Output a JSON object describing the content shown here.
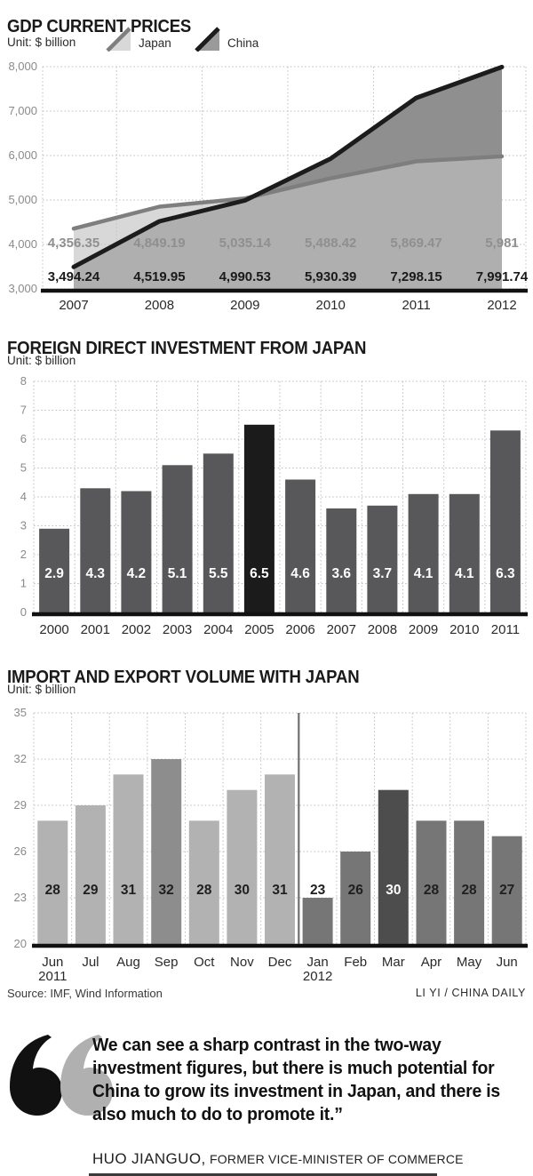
{
  "page": {
    "background": "#ffffff"
  },
  "palette": {
    "grid": "#bdbdbd",
    "axis_tick": "#8a8a8a",
    "baseline": "#111111",
    "x_label": "#2a2a2a",
    "divider": "#6f6f6f"
  },
  "source_line": {
    "source": "Source: IMF, Wind Information",
    "credit": "LI YI / CHINA DAILY"
  },
  "quote": {
    "text": "We can see a sharp contrast in the two-way investment figures, but there is much potential for China to grow its investment in Japan, and there is also much to do to promote it.”",
    "name": "HUO JIANGUO,",
    "role": "FORMER VICE-MINISTER OF COMMERCE",
    "mark_black": "#111111",
    "mark_gray": "#b0b0b0"
  },
  "chart_data": [
    {
      "id": "gdp",
      "type": "area",
      "title": "GDP CURRENT PRICES",
      "unit_label": "Unit: $ billion",
      "legend_position": "top",
      "grid": true,
      "categories": [
        "2007",
        "2008",
        "2009",
        "2010",
        "2011",
        "2012"
      ],
      "series": [
        {
          "name": "Japan",
          "values": [
            4356.35,
            4849.19,
            5035.14,
            5488.42,
            5869.47,
            5981
          ],
          "value_labels": [
            "4,356.35",
            "4,849.19",
            "5,035.14",
            "5,488.42",
            "5,869.47",
            "5,981"
          ],
          "area_fill": "#c2c2c2",
          "area_opacity": 0.64,
          "line_color": "#7e7e7e",
          "label_color": "#8f8f8f"
        },
        {
          "name": "China",
          "values": [
            3494.24,
            4519.95,
            4990.53,
            5930.39,
            7298.15,
            7991.74
          ],
          "value_labels": [
            "3,494.24",
            "4,519.95",
            "4,990.53",
            "5,930.39",
            "7,298.15",
            "7,991.74"
          ],
          "area_fill": "#8f8f8f",
          "area_opacity": 1,
          "line_color": "#1c1c1c",
          "label_color": "#1a1a1a"
        }
      ],
      "ylim": [
        3000,
        8000
      ],
      "yticks": [
        {
          "v": 8000,
          "label": "8,000"
        },
        {
          "v": 7000,
          "label": "7,000"
        },
        {
          "v": 6000,
          "label": "6,000"
        },
        {
          "v": 5000,
          "label": "5,000"
        },
        {
          "v": 4000,
          "label": "4,000"
        },
        {
          "v": 3000,
          "label": "3,000"
        }
      ]
    },
    {
      "id": "fdi",
      "type": "bar",
      "title": "FOREIGN DIRECT INVESTMENT FROM JAPAN",
      "unit_label": "Unit: $ billion",
      "grid": true,
      "categories": [
        "2000",
        "2001",
        "2002",
        "2003",
        "2004",
        "2005",
        "2006",
        "2007",
        "2008",
        "2009",
        "2010",
        "2011"
      ],
      "values": [
        2.9,
        4.3,
        4.2,
        5.1,
        5.5,
        6.5,
        4.6,
        3.6,
        3.7,
        4.1,
        4.1,
        6.3
      ],
      "value_labels": [
        "2.9",
        "4.3",
        "4.2",
        "5.1",
        "5.5",
        "6.5",
        "4.6",
        "3.6",
        "3.7",
        "4.1",
        "4.1",
        "6.3"
      ],
      "bar_color": "#58585a",
      "highlight_index": 5,
      "highlight_color": "#1b1b1b",
      "value_label_color": "#ffffff",
      "ylim": [
        0,
        8
      ],
      "yticks": [
        {
          "v": 8,
          "label": "8"
        },
        {
          "v": 7,
          "label": "7"
        },
        {
          "v": 6,
          "label": "6"
        },
        {
          "v": 5,
          "label": "5"
        },
        {
          "v": 4,
          "label": "4"
        },
        {
          "v": 3,
          "label": "3"
        },
        {
          "v": 2,
          "label": "2"
        },
        {
          "v": 1,
          "label": "1"
        },
        {
          "v": 0,
          "label": "0"
        }
      ]
    },
    {
      "id": "trade",
      "type": "bar",
      "title": "IMPORT AND EXPORT VOLUME WITH JAPAN",
      "unit_label": "Unit: $ billion",
      "grid": true,
      "categories": [
        {
          "label": "Jun",
          "sub": "2011"
        },
        {
          "label": "Jul"
        },
        {
          "label": "Aug"
        },
        {
          "label": "Sep"
        },
        {
          "label": "Oct"
        },
        {
          "label": "Nov"
        },
        {
          "label": "Dec"
        },
        {
          "label": "Jan",
          "sub": "2012"
        },
        {
          "label": "Feb"
        },
        {
          "label": "Mar"
        },
        {
          "label": "Apr"
        },
        {
          "label": "May"
        },
        {
          "label": "Jun"
        }
      ],
      "values": [
        28,
        29,
        31,
        32,
        28,
        30,
        31,
        23,
        26,
        30,
        28,
        28,
        27
      ],
      "value_labels": [
        "28",
        "29",
        "31",
        "32",
        "28",
        "30",
        "31",
        "23",
        "26",
        "30",
        "28",
        "28",
        "27"
      ],
      "bar_colors": [
        "#b2b2b2",
        "#b2b2b2",
        "#b2b2b2",
        "#8d8d8d",
        "#b2b2b2",
        "#b2b2b2",
        "#b2b2b2",
        "#767676",
        "#767676",
        "#4d4d4d",
        "#767676",
        "#767676",
        "#767676"
      ],
      "value_label_colors": [
        "#1f1f1f",
        "#1f1f1f",
        "#1f1f1f",
        "#1f1f1f",
        "#1f1f1f",
        "#1f1f1f",
        "#1f1f1f",
        "#1f1f1f",
        "#1f1f1f",
        "#ffffff",
        "#1f1f1f",
        "#1f1f1f",
        "#1f1f1f"
      ],
      "divider_after_index": 6,
      "ylim": [
        20,
        35
      ],
      "yticks": [
        {
          "v": 35,
          "label": "35"
        },
        {
          "v": 32,
          "label": "32"
        },
        {
          "v": 29,
          "label": "29"
        },
        {
          "v": 26,
          "label": "26"
        },
        {
          "v": 23,
          "label": "23"
        },
        {
          "v": 20,
          "label": "20"
        }
      ]
    }
  ]
}
